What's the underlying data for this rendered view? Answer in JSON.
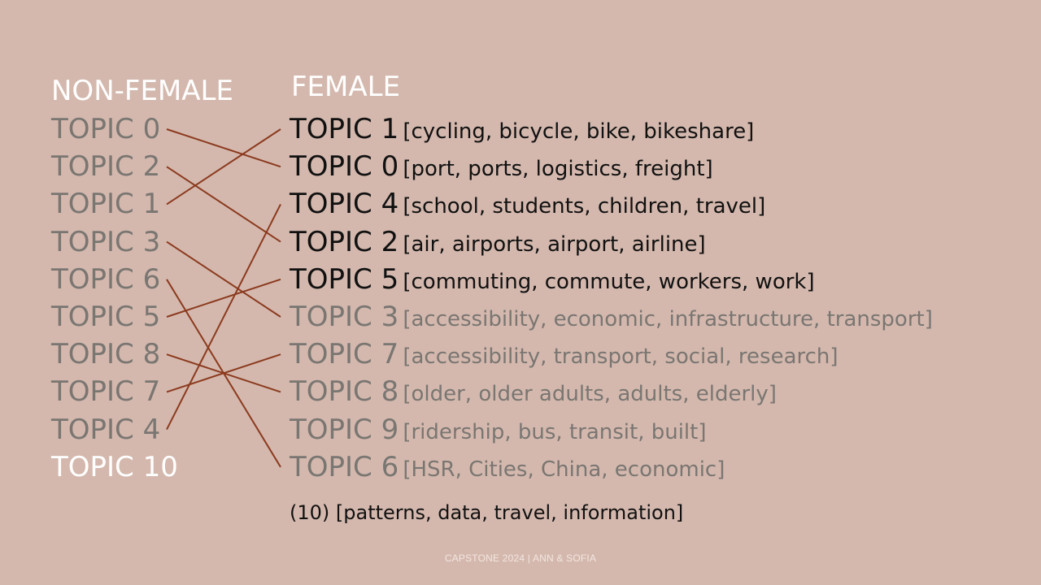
{
  "headers": {
    "left": "NON-FEMALE",
    "right": "FEMALE"
  },
  "left_topics": [
    {
      "label": "TOPIC 0",
      "highlight": false
    },
    {
      "label": "TOPIC 2",
      "highlight": false
    },
    {
      "label": "TOPIC 1",
      "highlight": false
    },
    {
      "label": "TOPIC 3",
      "highlight": false
    },
    {
      "label": "TOPIC 6",
      "highlight": false
    },
    {
      "label": "TOPIC 5",
      "highlight": false
    },
    {
      "label": "TOPIC 8",
      "highlight": false
    },
    {
      "label": "TOPIC 7",
      "highlight": false
    },
    {
      "label": "TOPIC 4",
      "highlight": false
    },
    {
      "label": "TOPIC 10",
      "highlight": true
    }
  ],
  "right_topics": [
    {
      "label": "TOPIC 1",
      "words": "[cycling, bicycle, bike, bikeshare]",
      "emphasis": "strong"
    },
    {
      "label": "TOPIC 0",
      "words": "[port, ports, logistics, freight]",
      "emphasis": "strong"
    },
    {
      "label": "TOPIC 4",
      "words": "[school, students, children, travel]",
      "emphasis": "strong"
    },
    {
      "label": "TOPIC 2",
      "words": "[air, airports, airport, airline]",
      "emphasis": "strong"
    },
    {
      "label": "TOPIC 5",
      "words": "[commuting, commute, workers, work]",
      "emphasis": "strong"
    },
    {
      "label": "TOPIC 3",
      "words": "[accessibility, economic, infrastructure, transport]",
      "emphasis": "muted"
    },
    {
      "label": "TOPIC 7",
      "words": "[accessibility, transport, social, research]",
      "emphasis": "muted"
    },
    {
      "label": "TOPIC 8",
      "words": "[older, older adults, adults, elderly]",
      "emphasis": "muted"
    },
    {
      "label": "TOPIC 9",
      "words": "[ridership, bus, transit, built]",
      "emphasis": "muted"
    },
    {
      "label": "TOPIC 6",
      "words": "[HSR, Cities, China, economic]",
      "emphasis": "muted"
    }
  ],
  "extra_topic": "(10) [patterns, data, travel, information]",
  "links": [
    {
      "from": 0,
      "to": 1
    },
    {
      "from": 1,
      "to": 3
    },
    {
      "from": 2,
      "to": 0
    },
    {
      "from": 3,
      "to": 5
    },
    {
      "from": 4,
      "to": 9
    },
    {
      "from": 5,
      "to": 4
    },
    {
      "from": 6,
      "to": 7
    },
    {
      "from": 7,
      "to": 6
    },
    {
      "from": 8,
      "to": 2
    }
  ],
  "colors": {
    "background": "#d4b8ad",
    "link": "#8b3a1e"
  },
  "footer": "CAPSTONE 2024 | ANN & SOFIA"
}
